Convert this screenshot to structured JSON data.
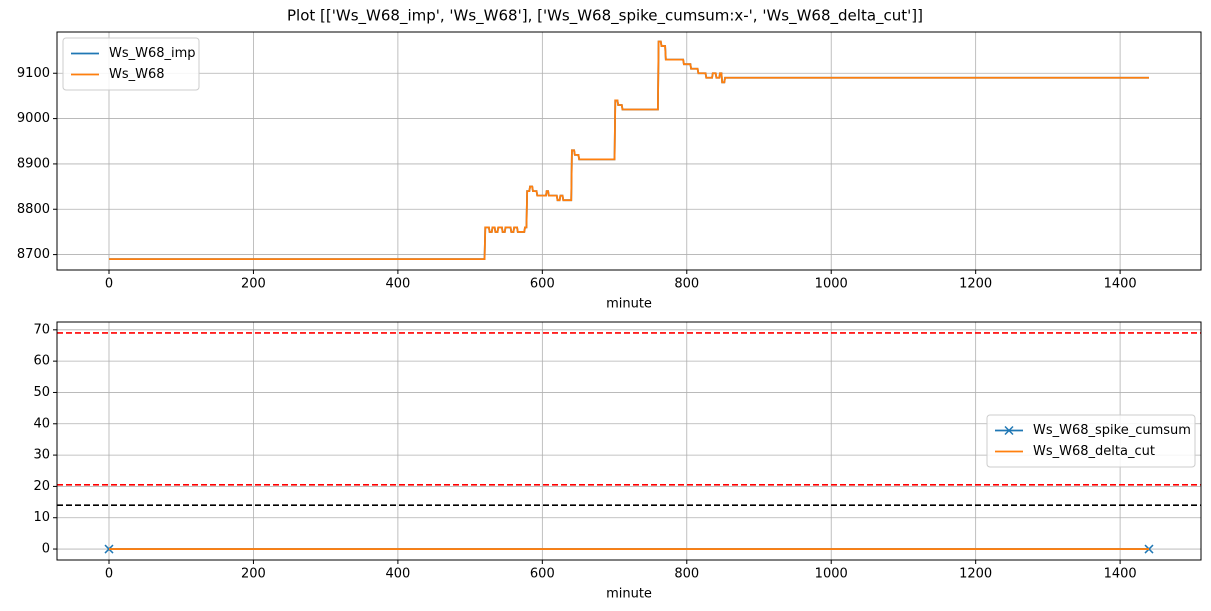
{
  "title": "Plot [['Ws_W68_imp', 'Ws_W68'], ['Ws_W68_spike_cumsum:x-', 'Ws_W68_delta_cut']]",
  "chart_data": [
    {
      "type": "line",
      "xlabel": "minute",
      "legend": "upper left",
      "grid": true,
      "xlim": [
        -72,
        1512
      ],
      "xticks": [
        0,
        200,
        400,
        600,
        800,
        1000,
        1200,
        1400
      ],
      "ylim": [
        8666,
        9191
      ],
      "yticks": [
        8700,
        8800,
        8900,
        9000,
        9100
      ],
      "x": [
        0,
        520,
        521,
        526,
        527,
        530,
        531,
        534,
        535,
        538,
        539,
        544,
        545,
        548,
        549,
        556,
        557,
        560,
        561,
        565,
        566,
        575,
        576,
        578,
        579,
        582,
        583,
        586,
        587,
        592,
        593,
        605,
        606,
        608,
        609,
        620,
        621,
        624,
        625,
        628,
        629,
        640,
        641,
        644,
        645,
        650,
        651,
        700,
        701,
        704,
        705,
        710,
        711,
        760,
        761,
        764,
        765,
        770,
        771,
        795,
        796,
        805,
        806,
        815,
        816,
        826,
        827,
        835,
        836,
        840,
        841,
        845,
        846,
        848,
        849,
        852,
        853,
        1440
      ],
      "series": [
        {
          "name": "Ws_W68_imp",
          "color": "#1f77b4",
          "values": [
            8690,
            8690,
            8760,
            8760,
            8750,
            8750,
            8760,
            8760,
            8750,
            8750,
            8760,
            8760,
            8750,
            8750,
            8760,
            8760,
            8750,
            8750,
            8760,
            8760,
            8750,
            8750,
            8760,
            8760,
            8840,
            8840,
            8850,
            8850,
            8840,
            8840,
            8830,
            8830,
            8840,
            8840,
            8830,
            8830,
            8820,
            8820,
            8830,
            8830,
            8820,
            8820,
            8930,
            8930,
            8920,
            8920,
            8910,
            8910,
            9040,
            9040,
            9030,
            9030,
            9020,
            9020,
            9170,
            9170,
            9160,
            9160,
            9130,
            9130,
            9120,
            9120,
            9110,
            9110,
            9100,
            9100,
            9090,
            9090,
            9100,
            9100,
            9090,
            9090,
            9100,
            9100,
            9080,
            9080,
            9090,
            9090
          ]
        },
        {
          "name": "Ws_W68",
          "color": "#ff7f0e",
          "values": [
            8690,
            8690,
            8760,
            8760,
            8750,
            8750,
            8760,
            8760,
            8750,
            8750,
            8760,
            8760,
            8750,
            8750,
            8760,
            8760,
            8750,
            8750,
            8760,
            8760,
            8750,
            8750,
            8760,
            8760,
            8840,
            8840,
            8850,
            8850,
            8840,
            8840,
            8830,
            8830,
            8840,
            8840,
            8830,
            8830,
            8820,
            8820,
            8830,
            8830,
            8820,
            8820,
            8930,
            8930,
            8920,
            8920,
            8910,
            8910,
            9040,
            9040,
            9030,
            9030,
            9020,
            9020,
            9170,
            9170,
            9160,
            9160,
            9130,
            9130,
            9120,
            9120,
            9110,
            9110,
            9100,
            9100,
            9090,
            9090,
            9100,
            9100,
            9090,
            9090,
            9100,
            9100,
            9080,
            9080,
            9090,
            9090
          ]
        }
      ]
    },
    {
      "type": "line",
      "xlabel": "minute",
      "legend": "center right",
      "grid": true,
      "xlim": [
        -72,
        1512
      ],
      "xticks": [
        0,
        200,
        400,
        600,
        800,
        1000,
        1200,
        1400
      ],
      "ylim": [
        -3.5,
        72.5
      ],
      "yticks": [
        0,
        10,
        20,
        30,
        40,
        50,
        60,
        70
      ],
      "x": [
        0,
        1440
      ],
      "series": [
        {
          "name": "Ws_W68_spike_cumsum",
          "color": "#1f77b4",
          "marker": "x",
          "values": [
            0,
            0
          ]
        },
        {
          "name": "Ws_W68_delta_cut",
          "color": "#ff7f0e",
          "values": [
            0,
            0
          ]
        }
      ],
      "hlines": [
        {
          "value": 69,
          "color": "#ff0000"
        },
        {
          "value": 20.5,
          "color": "#ff0000"
        },
        {
          "value": 14,
          "color": "#000000"
        }
      ]
    }
  ]
}
